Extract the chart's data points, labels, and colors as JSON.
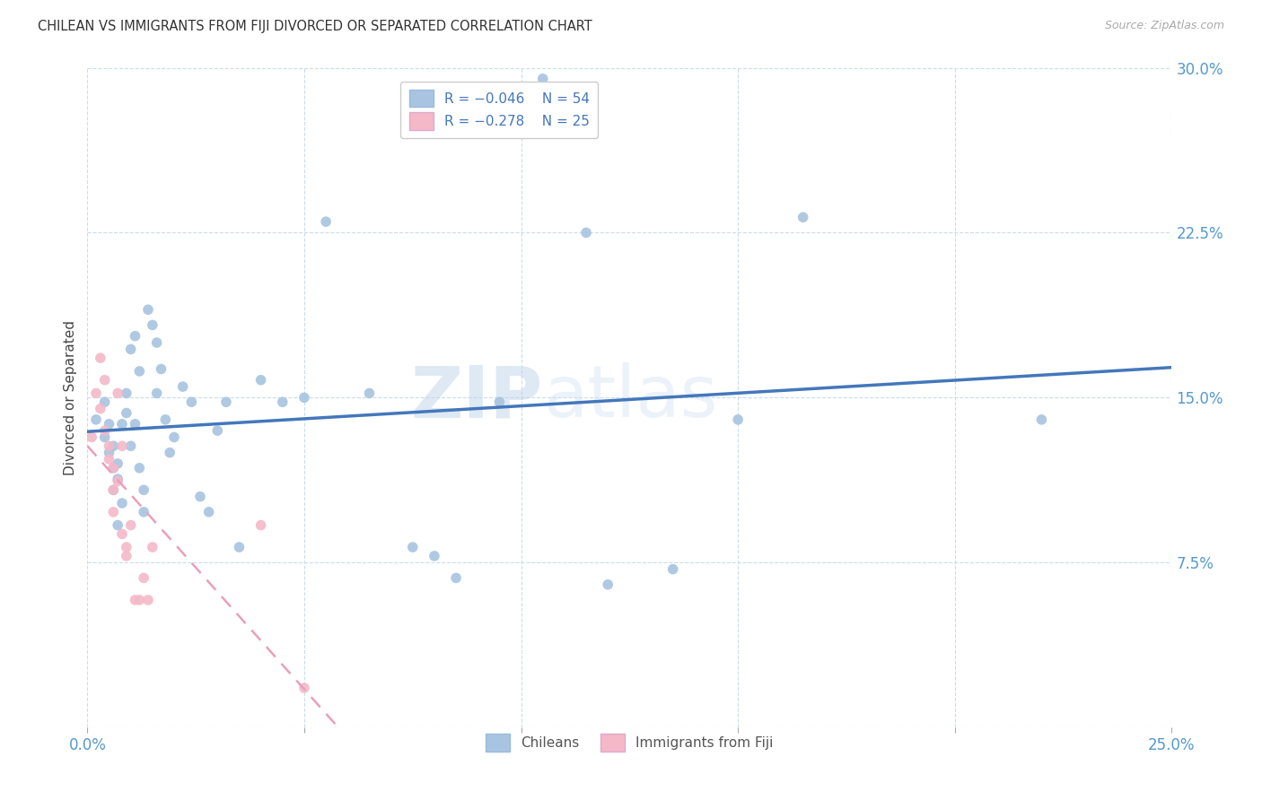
{
  "title": "CHILEAN VS IMMIGRANTS FROM FIJI DIVORCED OR SEPARATED CORRELATION CHART",
  "source_text": "Source: ZipAtlas.com",
  "ylabel": "Divorced or Separated",
  "xlim": [
    0.0,
    0.25
  ],
  "ylim": [
    0.0,
    0.3
  ],
  "xticks": [
    0.0,
    0.05,
    0.1,
    0.15,
    0.2,
    0.25
  ],
  "xticklabels": [
    "0.0%",
    "",
    "",
    "",
    "",
    "25.0%"
  ],
  "yticks": [
    0.0,
    0.075,
    0.15,
    0.225,
    0.3
  ],
  "yticklabels": [
    "",
    "7.5%",
    "15.0%",
    "22.5%",
    "30.0%"
  ],
  "legend_r1": "R = -0.046",
  "legend_n1": "N = 54",
  "legend_r2": "R = -0.278",
  "legend_n2": "N = 25",
  "blue_color": "#a8c4e0",
  "pink_color": "#f4b8c8",
  "blue_line_color": "#4477bb",
  "pink_line_color": "#e8a0b8",
  "watermark_zip": "ZIP",
  "watermark_atlas": "atlas",
  "chileans_x": [
    0.002,
    0.004,
    0.004,
    0.005,
    0.005,
    0.006,
    0.006,
    0.006,
    0.007,
    0.007,
    0.007,
    0.008,
    0.008,
    0.009,
    0.009,
    0.01,
    0.01,
    0.011,
    0.011,
    0.012,
    0.012,
    0.013,
    0.013,
    0.014,
    0.015,
    0.016,
    0.016,
    0.017,
    0.018,
    0.019,
    0.02,
    0.022,
    0.024,
    0.026,
    0.028,
    0.03,
    0.032,
    0.035,
    0.04,
    0.045,
    0.05,
    0.055,
    0.065,
    0.075,
    0.08,
    0.085,
    0.095,
    0.105,
    0.115,
    0.12,
    0.135,
    0.15,
    0.165,
    0.22
  ],
  "chileans_y": [
    0.14,
    0.148,
    0.132,
    0.138,
    0.125,
    0.128,
    0.118,
    0.108,
    0.12,
    0.113,
    0.092,
    0.138,
    0.102,
    0.152,
    0.143,
    0.172,
    0.128,
    0.178,
    0.138,
    0.162,
    0.118,
    0.108,
    0.098,
    0.19,
    0.183,
    0.175,
    0.152,
    0.163,
    0.14,
    0.125,
    0.132,
    0.155,
    0.148,
    0.105,
    0.098,
    0.135,
    0.148,
    0.082,
    0.158,
    0.148,
    0.15,
    0.23,
    0.152,
    0.082,
    0.078,
    0.068,
    0.148,
    0.295,
    0.225,
    0.065,
    0.072,
    0.14,
    0.232,
    0.14
  ],
  "fiji_x": [
    0.001,
    0.002,
    0.003,
    0.003,
    0.004,
    0.004,
    0.005,
    0.005,
    0.006,
    0.006,
    0.006,
    0.007,
    0.007,
    0.008,
    0.008,
    0.009,
    0.009,
    0.01,
    0.011,
    0.012,
    0.013,
    0.014,
    0.015,
    0.04,
    0.05
  ],
  "fiji_y": [
    0.132,
    0.152,
    0.145,
    0.168,
    0.158,
    0.135,
    0.128,
    0.122,
    0.108,
    0.118,
    0.098,
    0.152,
    0.112,
    0.128,
    0.088,
    0.078,
    0.082,
    0.092,
    0.058,
    0.058,
    0.068,
    0.058,
    0.082,
    0.092,
    0.018
  ]
}
